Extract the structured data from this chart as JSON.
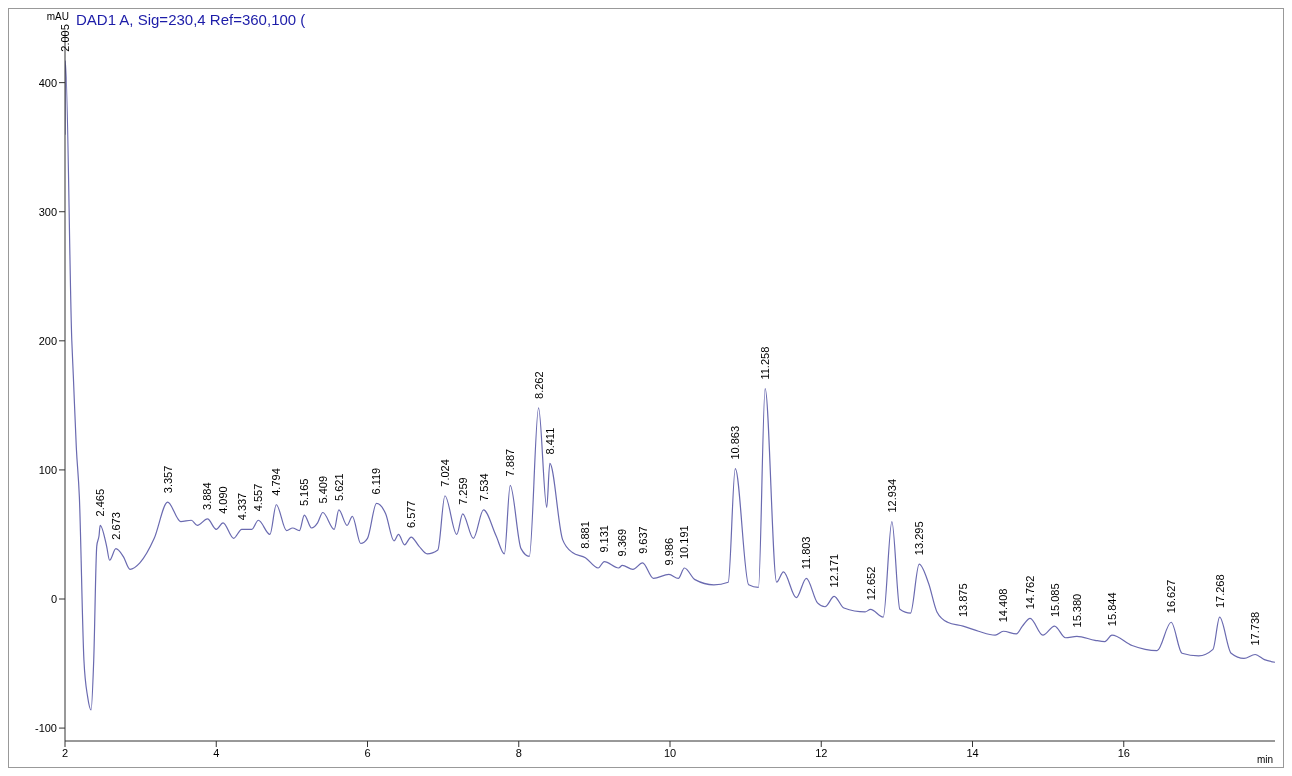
{
  "chart_data": {
    "type": "line",
    "title": "DAD1 A, Sig=230,4 Ref=360,100 (",
    "xlabel": "min",
    "ylabel": "mAU",
    "color": "#6a6ab0",
    "x": [
      2.0,
      2.005,
      2.09,
      2.11,
      2.15,
      2.19,
      2.25,
      2.3,
      2.345,
      2.38,
      2.42,
      2.45,
      2.465,
      2.55,
      2.59,
      2.673,
      2.77,
      2.86,
      2.99,
      3.18,
      3.357,
      3.53,
      3.67,
      3.75,
      3.884,
      4.0,
      4.09,
      4.23,
      4.337,
      4.47,
      4.557,
      4.71,
      4.794,
      4.93,
      5.01,
      5.1,
      5.165,
      5.26,
      5.34,
      5.409,
      5.56,
      5.621,
      5.73,
      5.8,
      5.91,
      6.0,
      6.119,
      6.24,
      6.35,
      6.41,
      6.49,
      6.577,
      6.68,
      6.79,
      6.93,
      7.024,
      7.18,
      7.259,
      7.4,
      7.534,
      7.7,
      7.81,
      7.887,
      8.03,
      8.14,
      8.262,
      8.37,
      8.411,
      8.58,
      8.71,
      8.881,
      9.05,
      9.131,
      9.32,
      9.369,
      9.51,
      9.637,
      9.78,
      9.986,
      10.11,
      10.191,
      10.33,
      10.58,
      10.77,
      10.863,
      11.04,
      11.17,
      11.258,
      11.41,
      11.5,
      11.67,
      11.803,
      11.95,
      12.05,
      12.171,
      12.3,
      12.58,
      12.652,
      12.82,
      12.934,
      13.04,
      13.18,
      13.295,
      13.42,
      13.53,
      13.67,
      13.875,
      14.08,
      14.3,
      14.408,
      14.58,
      14.66,
      14.762,
      14.93,
      15.085,
      15.23,
      15.38,
      15.62,
      15.75,
      15.844,
      16.11,
      16.44,
      16.627,
      16.77,
      16.99,
      17.18,
      17.268,
      17.42,
      17.59,
      17.738,
      17.86,
      18.0
    ],
    "values": [
      360,
      417,
      200,
      173,
      117,
      79,
      -47,
      -76,
      -86,
      -47,
      41,
      49,
      57,
      41,
      30,
      39,
      33,
      23,
      28,
      47,
      75,
      60,
      61,
      57,
      62,
      54,
      59,
      47,
      54,
      54,
      61,
      50,
      73,
      53,
      55,
      53,
      65,
      55,
      59,
      67,
      54,
      69,
      57,
      64,
      43,
      47,
      74,
      66,
      45,
      50,
      42,
      48,
      41,
      35,
      38,
      80,
      50,
      66,
      47,
      69,
      49,
      35,
      88,
      39,
      33,
      148,
      71,
      105,
      46,
      36,
      32,
      24,
      29,
      24,
      26,
      23,
      28,
      16,
      19,
      16,
      24,
      15,
      11,
      13,
      101,
      11,
      9,
      163,
      13,
      21,
      1,
      16,
      -3,
      -6,
      2,
      -7,
      -10,
      -8,
      -14,
      60,
      -8,
      -11,
      27,
      12,
      -10,
      -18,
      -21,
      -25,
      -28,
      -25,
      -27,
      -21,
      -15,
      -28,
      -21,
      -30,
      -29,
      -32,
      -33,
      -28,
      -36,
      -40,
      -18,
      -42,
      -44,
      -39,
      -14,
      -42,
      -46,
      -43,
      -47,
      -49
    ],
    "xlim": [
      2,
      18
    ],
    "xticks": [
      2,
      4,
      6,
      8,
      10,
      12,
      14,
      16
    ],
    "ylim": [
      -110,
      440
    ],
    "yticks": [
      -100,
      0,
      100,
      200,
      300,
      400
    ],
    "grid": false,
    "legend": false,
    "marker": "none",
    "line_style": "solid",
    "annotations": [
      {
        "text": "2.005",
        "x": 2.005,
        "y": 417
      },
      {
        "text": "2.465",
        "x": 2.465,
        "y": 57
      },
      {
        "text": "2.673",
        "x": 2.673,
        "y": 39
      },
      {
        "text": "3.357",
        "x": 3.357,
        "y": 75
      },
      {
        "text": "3.884",
        "x": 3.884,
        "y": 62
      },
      {
        "text": "4.090",
        "x": 4.09,
        "y": 59
      },
      {
        "text": "4.337",
        "x": 4.337,
        "y": 54
      },
      {
        "text": "4.557",
        "x": 4.557,
        "y": 61
      },
      {
        "text": "4.794",
        "x": 4.794,
        "y": 73
      },
      {
        "text": "5.165",
        "x": 5.165,
        "y": 65
      },
      {
        "text": "5.409",
        "x": 5.409,
        "y": 67
      },
      {
        "text": "5.621",
        "x": 5.621,
        "y": 69
      },
      {
        "text": "6.119",
        "x": 6.119,
        "y": 74
      },
      {
        "text": "6.577",
        "x": 6.577,
        "y": 48
      },
      {
        "text": "7.024",
        "x": 7.024,
        "y": 80
      },
      {
        "text": "7.259",
        "x": 7.259,
        "y": 66
      },
      {
        "text": "7.534",
        "x": 7.534,
        "y": 69
      },
      {
        "text": "7.887",
        "x": 7.887,
        "y": 88
      },
      {
        "text": "8.262",
        "x": 8.262,
        "y": 148
      },
      {
        "text": "8.411",
        "x": 8.411,
        "y": 105
      },
      {
        "text": "8.881",
        "x": 8.881,
        "y": 32
      },
      {
        "text": "9.131",
        "x": 9.131,
        "y": 29
      },
      {
        "text": "9.369",
        "x": 9.369,
        "y": 26
      },
      {
        "text": "9.637",
        "x": 9.637,
        "y": 28
      },
      {
        "text": "9.986",
        "x": 9.986,
        "y": 19
      },
      {
        "text": "10.191",
        "x": 10.191,
        "y": 24
      },
      {
        "text": "10.863",
        "x": 10.863,
        "y": 101
      },
      {
        "text": "11.258",
        "x": 11.258,
        "y": 163
      },
      {
        "text": "11.803",
        "x": 11.803,
        "y": 16
      },
      {
        "text": "12.171",
        "x": 12.171,
        "y": 2
      },
      {
        "text": "12.652",
        "x": 12.652,
        "y": -8
      },
      {
        "text": "12.934",
        "x": 12.934,
        "y": 60
      },
      {
        "text": "13.295",
        "x": 13.295,
        "y": 27
      },
      {
        "text": "13.875",
        "x": 13.875,
        "y": -21
      },
      {
        "text": "14.408",
        "x": 14.408,
        "y": -25
      },
      {
        "text": "14.762",
        "x": 14.762,
        "y": -15
      },
      {
        "text": "15.085",
        "x": 15.085,
        "y": -21
      },
      {
        "text": "15.380",
        "x": 15.38,
        "y": -29
      },
      {
        "text": "15.844",
        "x": 15.844,
        "y": -28
      },
      {
        "text": "16.627",
        "x": 16.627,
        "y": -18
      },
      {
        "text": "17.268",
        "x": 17.268,
        "y": -14
      },
      {
        "text": "17.738",
        "x": 17.738,
        "y": -43
      }
    ]
  }
}
